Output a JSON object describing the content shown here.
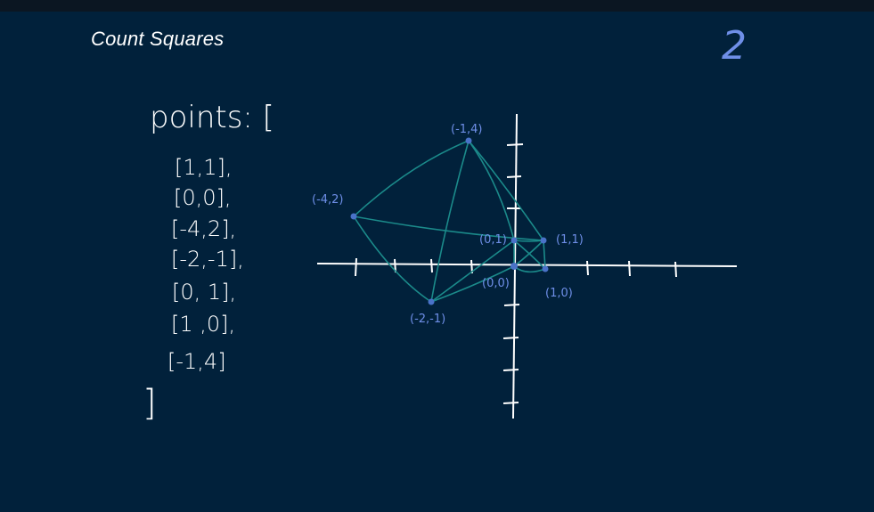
{
  "title": "Count Squares",
  "answer": "2",
  "points_label": "points: [",
  "points_close": "]",
  "points": [
    "[1,1],",
    "[0,0],",
    "[-4,2],",
    "[-2,-1],",
    "[0, 1],",
    "[1 ,0],",
    "[-1,4]"
  ],
  "coordinate_labels": [
    "(-1,4)",
    "(-4,2)",
    "(0,1)",
    "(1,1)",
    "(0,0)",
    "(1,0)",
    "(-2,-1)"
  ],
  "colors": {
    "background": "#01213b",
    "ink": "#ffffff",
    "label": "#6f8fe8",
    "edges": "#1b8a8a",
    "dot": "#4a72c8"
  }
}
